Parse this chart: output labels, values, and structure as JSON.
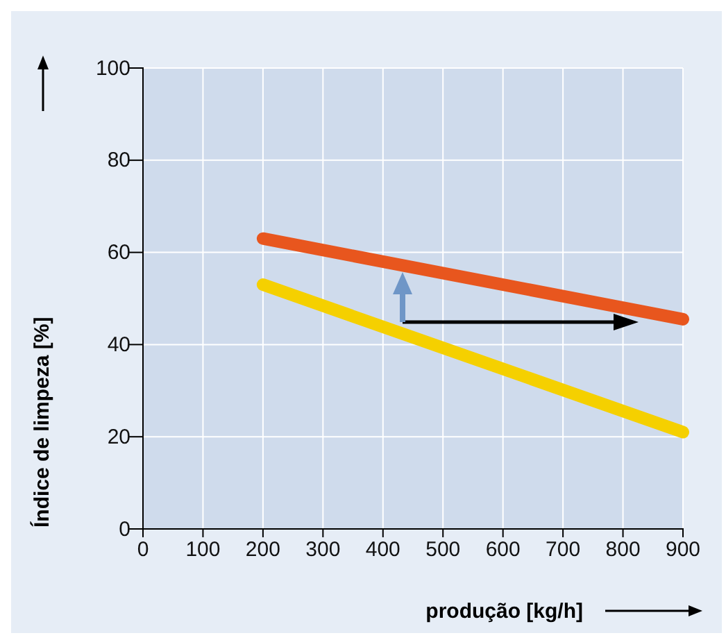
{
  "chart_data": {
    "type": "line",
    "xlabel": "produção [kg/h]",
    "ylabel": "Índice de limpeza [%]",
    "x": [
      200,
      900
    ],
    "series": [
      {
        "color": "#e8561e",
        "values": [
          63,
          45.5
        ]
      },
      {
        "color": "#f5d000",
        "values": [
          53,
          21
        ]
      }
    ],
    "xlim": [
      0,
      900
    ],
    "xticks": [
      0,
      100,
      200,
      300,
      400,
      500,
      600,
      700,
      800,
      900
    ],
    "ylim": [
      0,
      100
    ],
    "yticks": [
      0,
      20,
      40,
      60,
      80,
      100
    ],
    "grid": true,
    "line_style": "solid",
    "marker": "none"
  }
}
